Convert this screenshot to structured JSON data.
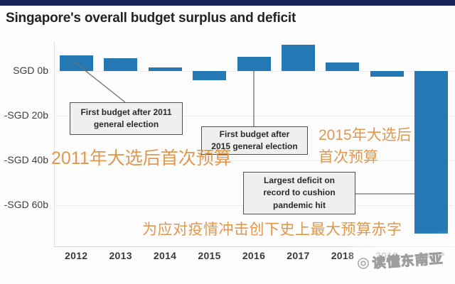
{
  "header": {
    "title": "Singapore's overall budget surplus and deficit"
  },
  "chart_data": {
    "type": "bar",
    "title": "Singapore's overall budget surplus and deficit",
    "unit": "SGD billions",
    "categories": [
      "2012",
      "2013",
      "2014",
      "2015",
      "2016",
      "2017",
      "2018",
      "2019",
      "2020*"
    ],
    "values": [
      7.0,
      5.7,
      1.5,
      -4.1,
      6.3,
      11.7,
      3.8,
      -2.5,
      -72.7
    ],
    "bar_color": "#2478b4",
    "ylabel": "",
    "xlabel": "",
    "ylim": [
      -78,
      13
    ],
    "grid": true,
    "legend": "none",
    "yticks": [
      {
        "label": "SGD 0b",
        "value": 0
      },
      {
        "label": "-SGD 20b",
        "value": -20
      },
      {
        "label": "-SGD 40b",
        "value": -40
      },
      {
        "label": "-SGD 60b",
        "value": -60
      }
    ],
    "annotations": [
      {
        "lines": [
          "First budget after 2011",
          "general election"
        ],
        "target_year": "2012"
      },
      {
        "lines": [
          "First budget after",
          "2015 general election"
        ],
        "target_year": "2016"
      },
      {
        "lines": [
          "Largest deficit on",
          "record to cushion",
          "pandemic hit"
        ],
        "target_year": "2020*"
      }
    ],
    "chinese_annotations": [
      {
        "lines": [
          "2011年大选后首次预算"
        ],
        "color": "#e0984f"
      },
      {
        "lines": [
          "2015年大选后",
          "首次预算"
        ],
        "color": "#e0984f"
      },
      {
        "lines": [
          "为应对疫情冲击创下史上最大预算赤字"
        ],
        "color": "#e0984f"
      }
    ],
    "accent_color": "#15265c"
  },
  "watermark": {
    "logo": "◎",
    "text": "读懂东南亚"
  }
}
